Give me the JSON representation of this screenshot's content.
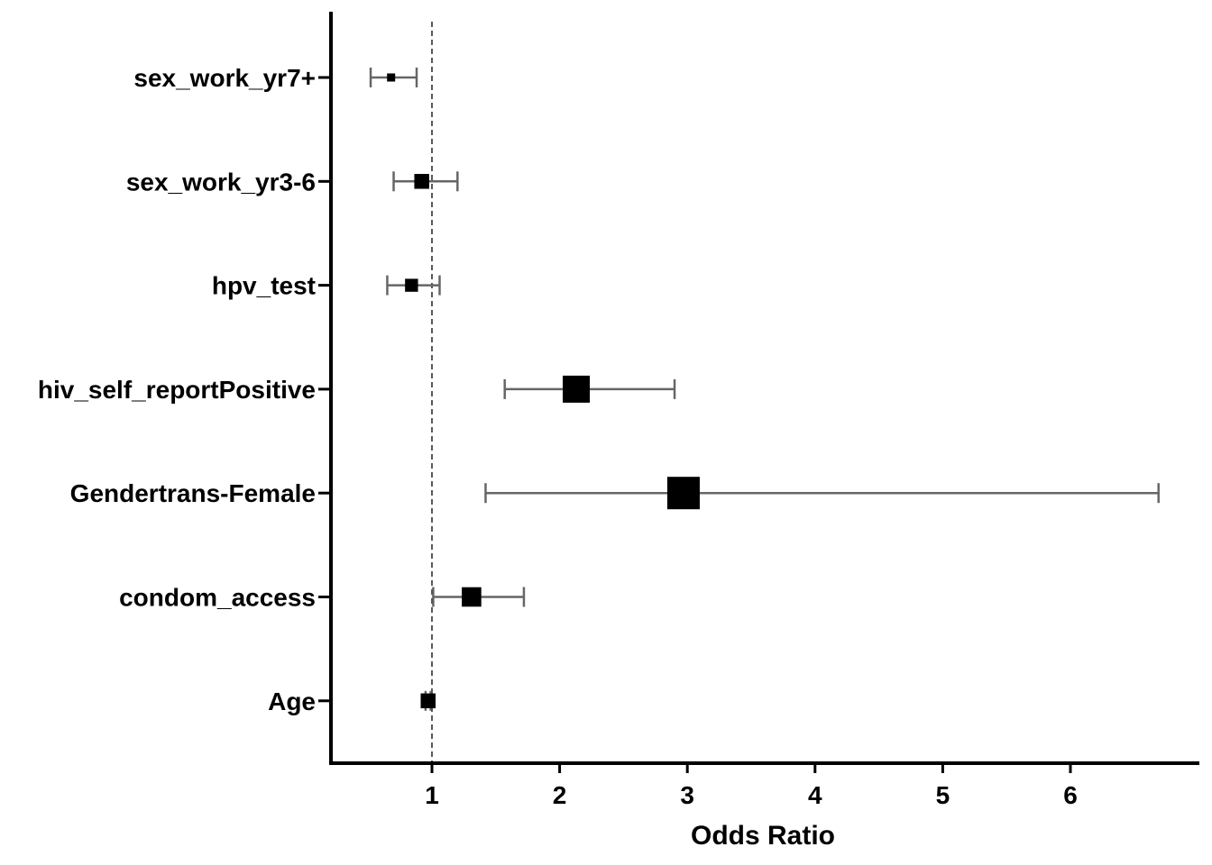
{
  "chart_data": {
    "type": "forest",
    "title": "",
    "xlabel": "Odds Ratio",
    "ylabel": "",
    "xlim": [
      0.2,
      6.99
    ],
    "xticks": [
      1,
      2,
      3,
      4,
      5,
      6
    ],
    "reference_line": 1,
    "grid": false,
    "colors": {
      "marker": "#000000",
      "ci": "#666666",
      "axis": "#000000",
      "reference": "#000000"
    },
    "rows": [
      {
        "label": "sex_work_yr7+",
        "or": 0.68,
        "lower": 0.52,
        "upper": 0.88,
        "weight": 0.3
      },
      {
        "label": "sex_work_yr3-6",
        "or": 0.92,
        "lower": 0.7,
        "upper": 1.2,
        "weight": 0.55
      },
      {
        "label": "hpv_test",
        "or": 0.84,
        "lower": 0.65,
        "upper": 1.06,
        "weight": 0.48
      },
      {
        "label": "hiv_self_reportPositive",
        "or": 2.13,
        "lower": 1.57,
        "upper": 2.9,
        "weight": 1.0
      },
      {
        "label": "Gendertrans-Female",
        "or": 2.97,
        "lower": 1.42,
        "upper": 6.69,
        "weight": 1.2
      },
      {
        "label": "condom_access",
        "or": 1.31,
        "lower": 1.01,
        "upper": 1.72,
        "weight": 0.72
      },
      {
        "label": "Age",
        "or": 0.97,
        "lower": 0.95,
        "upper": 0.99,
        "weight": 0.55
      }
    ]
  }
}
